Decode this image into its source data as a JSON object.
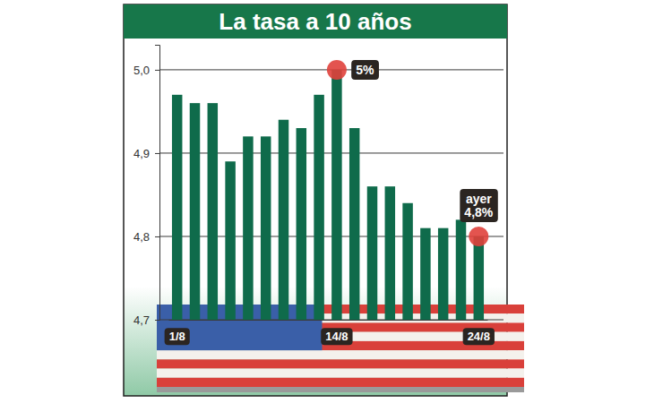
{
  "chart_data": {
    "type": "bar",
    "title": "La tasa a 10 años",
    "categories": [
      "1/8",
      null,
      null,
      null,
      null,
      null,
      null,
      null,
      null,
      "14/8",
      null,
      null,
      null,
      null,
      null,
      null,
      null,
      "24/8"
    ],
    "values": [
      4.97,
      4.96,
      4.96,
      4.89,
      4.92,
      4.92,
      4.94,
      4.93,
      4.97,
      5.0,
      4.93,
      4.86,
      4.86,
      4.84,
      4.81,
      4.81,
      4.82,
      4.8
    ],
    "color": "#0f6b4b",
    "ylim": [
      4.7,
      5.03
    ],
    "yticks": [
      {
        "value": 4.7,
        "label": "4,7"
      },
      {
        "value": 4.8,
        "label": "4,8"
      },
      {
        "value": 4.9,
        "label": "4,9"
      },
      {
        "value": 5.0,
        "label": "5,0"
      }
    ],
    "grid": true,
    "annotations": [
      {
        "category": "14/8",
        "lines": [
          "5%"
        ]
      },
      {
        "category": "24/8",
        "lines": [
          "ayer",
          "4,8%"
        ]
      }
    ]
  }
}
